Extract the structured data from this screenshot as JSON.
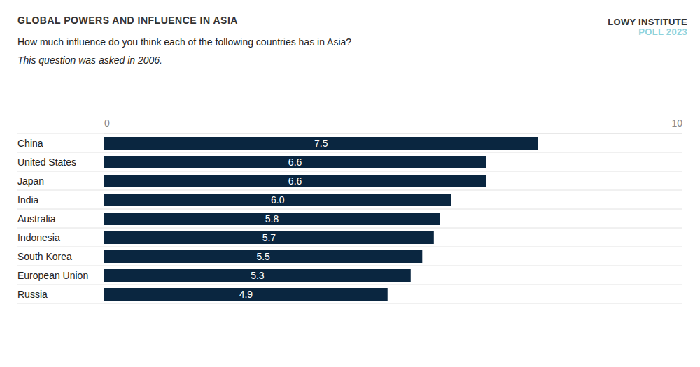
{
  "chart_data": {
    "type": "bar",
    "title": "GLOBAL POWERS AND INFLUENCE IN ASIA",
    "subtitle": "How much influence do you think each of the following countries has in Asia?",
    "annotations": [
      "This question was asked in 2006."
    ],
    "source": [
      "LOWY INSTITUTE",
      "POLL 2023"
    ],
    "orientation": "horizontal",
    "categories": [
      "China",
      "United States",
      "Japan",
      "India",
      "Australia",
      "Indonesia",
      "South Korea",
      "European Union",
      "Russia"
    ],
    "values": [
      7.5,
      6.6,
      6.6,
      6.0,
      5.8,
      5.7,
      5.5,
      5.3,
      4.9
    ],
    "value_labels": [
      "7.5",
      "6.6",
      "6.6",
      "6.0",
      "5.8",
      "5.7",
      "5.5",
      "5.3",
      "4.9"
    ],
    "color": "#0a2640",
    "xlim": [
      0,
      10
    ],
    "xticks": [
      0,
      10
    ],
    "grid": true,
    "data_labels": true
  }
}
